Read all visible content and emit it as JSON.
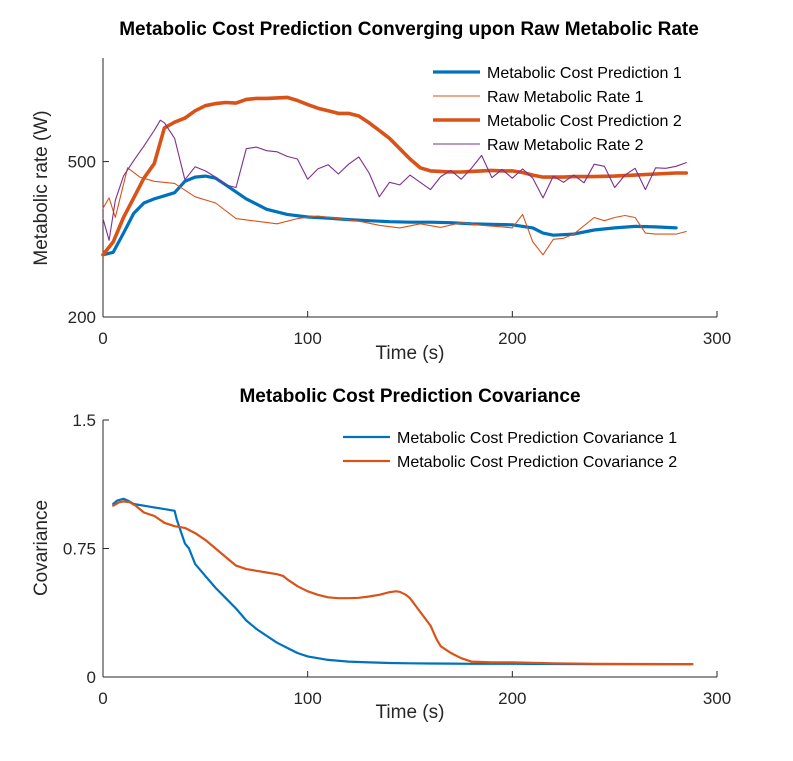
{
  "chart_data": [
    {
      "type": "line",
      "title": "Metabolic Cost Prediction Converging upon Raw Metabolic Rate",
      "xlabel": "Time (s)",
      "ylabel": "Metabolic rate (W)",
      "xlim": [
        0,
        300
      ],
      "ylim": [
        200,
        700
      ],
      "xticks": [
        0,
        100,
        200,
        300
      ],
      "yticks": [
        200,
        500
      ],
      "grid": false,
      "legend_position": "top-right",
      "series": [
        {
          "name": "Metabolic Cost Prediction 1",
          "color": "#0072BD",
          "width": 3.2,
          "x": [
            0,
            5,
            10,
            15,
            20,
            25,
            30,
            35,
            40,
            45,
            50,
            55,
            60,
            70,
            80,
            90,
            100,
            110,
            120,
            130,
            140,
            150,
            160,
            170,
            180,
            190,
            200,
            210,
            215,
            220,
            230,
            240,
            250,
            260,
            270,
            280
          ],
          "y": [
            320,
            325,
            362,
            400,
            420,
            428,
            434,
            440,
            462,
            470,
            472,
            468,
            455,
            428,
            408,
            398,
            393,
            391,
            388,
            386,
            384,
            383,
            383,
            382,
            380,
            379,
            378,
            372,
            362,
            358,
            360,
            368,
            372,
            375,
            374,
            372
          ]
        },
        {
          "name": "Raw Metabolic Rate 1",
          "color": "#D95319",
          "width": 1.1,
          "x": [
            0,
            3,
            6,
            12,
            18,
            25,
            35,
            45,
            55,
            65,
            75,
            85,
            95,
            105,
            115,
            125,
            135,
            145,
            155,
            165,
            175,
            185,
            195,
            200,
            205,
            210,
            215,
            220,
            225,
            230,
            240,
            245,
            250,
            255,
            260,
            265,
            270,
            280,
            285
          ],
          "y": [
            410,
            430,
            392,
            488,
            470,
            462,
            458,
            432,
            420,
            390,
            385,
            380,
            390,
            395,
            390,
            385,
            377,
            372,
            380,
            373,
            382,
            377,
            374,
            372,
            398,
            345,
            320,
            350,
            352,
            360,
            392,
            386,
            392,
            396,
            392,
            362,
            360,
            360,
            365
          ]
        },
        {
          "name": "Metabolic Cost Prediction 2",
          "color": "#D95319",
          "width": 3.6,
          "x": [
            0,
            5,
            10,
            15,
            20,
            25,
            30,
            35,
            40,
            45,
            50,
            55,
            60,
            65,
            70,
            75,
            80,
            85,
            90,
            95,
            100,
            105,
            110,
            115,
            120,
            125,
            130,
            135,
            140,
            145,
            150,
            155,
            160,
            165,
            170,
            175,
            180,
            185,
            190,
            195,
            200,
            205,
            210,
            215,
            220,
            225,
            230,
            240,
            250,
            260,
            270,
            280,
            285
          ],
          "y": [
            320,
            345,
            392,
            430,
            468,
            496,
            565,
            576,
            584,
            598,
            608,
            612,
            614,
            613,
            620,
            622,
            622,
            623,
            624,
            618,
            610,
            603,
            598,
            593,
            593,
            588,
            575,
            560,
            545,
            525,
            505,
            488,
            482,
            481,
            480,
            480,
            481,
            482,
            483,
            482,
            482,
            479,
            474,
            470,
            470,
            470,
            471,
            471,
            472,
            474,
            476,
            478,
            478
          ]
        },
        {
          "name": "Raw Metabolic Rate 2",
          "color": "#7E2F8E",
          "width": 1.1,
          "x": [
            0,
            3,
            6,
            10,
            15,
            20,
            25,
            28,
            30,
            35,
            40,
            45,
            50,
            55,
            60,
            65,
            70,
            75,
            80,
            85,
            90,
            95,
            100,
            105,
            110,
            115,
            120,
            125,
            130,
            135,
            140,
            145,
            150,
            155,
            160,
            165,
            170,
            175,
            180,
            185,
            190,
            195,
            200,
            205,
            210,
            215,
            220,
            225,
            230,
            235,
            240,
            245,
            250,
            255,
            260,
            265,
            270,
            275,
            280,
            285
          ],
          "y": [
            390,
            348,
            425,
            472,
            502,
            530,
            560,
            580,
            575,
            545,
            465,
            490,
            482,
            470,
            455,
            450,
            525,
            528,
            521,
            519,
            510,
            505,
            466,
            486,
            494,
            476,
            495,
            509,
            478,
            432,
            460,
            455,
            474,
            460,
            446,
            471,
            483,
            466,
            487,
            512,
            469,
            485,
            468,
            486,
            468,
            430,
            472,
            460,
            474,
            459,
            495,
            491,
            450,
            474,
            487,
            446,
            488,
            487,
            491,
            498
          ]
        }
      ]
    },
    {
      "type": "line",
      "title": "Metabolic Cost Prediction Covariance",
      "xlabel": "Time (s)",
      "ylabel": "Covariance",
      "xlim": [
        0,
        300
      ],
      "ylim": [
        0,
        1.5
      ],
      "xticks": [
        0,
        100,
        200,
        300
      ],
      "yticks": [
        0,
        0.75,
        1.5
      ],
      "grid": false,
      "legend_position": "top-right",
      "series": [
        {
          "name": "Metabolic Cost Prediction Covariance 1",
          "color": "#0072BD",
          "width": 2.2,
          "x": [
            5,
            7,
            10,
            12,
            15,
            20,
            25,
            30,
            35,
            36,
            40,
            42,
            45,
            50,
            55,
            60,
            65,
            70,
            75,
            80,
            85,
            90,
            95,
            100,
            110,
            120,
            130,
            140,
            150,
            160,
            170,
            180,
            190,
            200,
            220,
            240,
            260,
            280,
            288
          ],
          "y": [
            1.01,
            1.03,
            1.04,
            1.03,
            1.01,
            1.0,
            0.99,
            0.98,
            0.97,
            0.92,
            0.78,
            0.75,
            0.66,
            0.59,
            0.52,
            0.46,
            0.4,
            0.33,
            0.28,
            0.24,
            0.2,
            0.17,
            0.14,
            0.12,
            0.1,
            0.09,
            0.085,
            0.082,
            0.08,
            0.079,
            0.078,
            0.077,
            0.077,
            0.077,
            0.076,
            0.075,
            0.075,
            0.075,
            0.075
          ]
        },
        {
          "name": "Metabolic Cost Prediction Covariance 2",
          "color": "#D95319",
          "width": 2.2,
          "x": [
            5,
            8,
            10,
            13,
            16,
            18,
            20,
            25,
            30,
            35,
            40,
            45,
            50,
            55,
            60,
            65,
            70,
            75,
            80,
            85,
            88,
            90,
            95,
            100,
            105,
            110,
            115,
            120,
            125,
            130,
            135,
            140,
            143,
            145,
            148,
            150,
            155,
            160,
            163,
            165,
            170,
            175,
            180,
            190,
            200,
            220,
            240,
            260,
            280,
            288
          ],
          "y": [
            1.0,
            1.02,
            1.025,
            1.02,
            1.0,
            0.98,
            0.96,
            0.94,
            0.9,
            0.88,
            0.87,
            0.84,
            0.8,
            0.75,
            0.7,
            0.65,
            0.63,
            0.62,
            0.61,
            0.6,
            0.59,
            0.57,
            0.53,
            0.5,
            0.48,
            0.465,
            0.46,
            0.46,
            0.462,
            0.47,
            0.48,
            0.495,
            0.5,
            0.497,
            0.48,
            0.46,
            0.38,
            0.3,
            0.22,
            0.18,
            0.14,
            0.11,
            0.09,
            0.085,
            0.085,
            0.08,
            0.077,
            0.076,
            0.075,
            0.075
          ]
        }
      ]
    }
  ]
}
